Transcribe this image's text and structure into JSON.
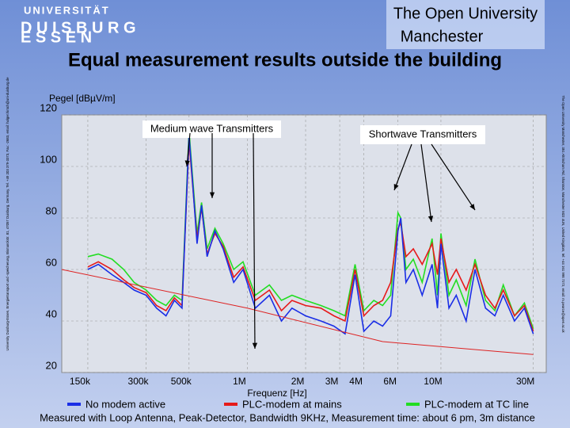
{
  "header": {
    "logo_line1": "UNIVERSITÄT",
    "logo_line2": "D U I S B U R G",
    "logo_line3": "E S S E N",
    "partner_line1": "The Open University",
    "partner_line2": "Manchester",
    "side_left": "University Duisburg-Essen, Energietransport und -speicherung, Bismarckstr. 81, 47057 Duisburg, Germany, Tel. +49 203 379-3373, Fax: -2683, email: holger.hirsch@uni-duisburg.de",
    "side_right": "The Open University Manchester, 351 Altrincham Rd, Sharston, Manchester M22 4UN, United Kingdom, tel: +44 161 998 7272, email: m.pearce@open.ac.uk"
  },
  "chart_data": {
    "type": "line",
    "title": "Equal measurement results outside the building",
    "y_label": "Pegel [dBµV/m]",
    "x_label": "Frequenz [Hz]",
    "footer": "Measured with Loop Antenna, Peak-Detector, Bandwidth 9KHz, Measurement time: about 6 pm, 3m distance",
    "annotations": [
      "Medium wave Transmitters",
      "Shortwave Transmitters"
    ],
    "log_x": true,
    "grid": true,
    "xlim": [
      110000,
      35000000
    ],
    "ylim": [
      20,
      120
    ],
    "xticks": [
      {
        "value": 150000,
        "label": "150k"
      },
      {
        "value": 300000,
        "label": "300k"
      },
      {
        "value": 500000,
        "label": "500k"
      },
      {
        "value": 1000000,
        "label": "1M"
      },
      {
        "value": 2000000,
        "label": "2M"
      },
      {
        "value": 3000000,
        "label": "3M"
      },
      {
        "value": 4000000,
        "label": "4M"
      },
      {
        "value": 6000000,
        "label": "6M"
      },
      {
        "value": 10000000,
        "label": "10M"
      },
      {
        "value": 30000000,
        "label": "30M"
      }
    ],
    "yticks": [
      20,
      40,
      60,
      80,
      100,
      120
    ],
    "x": [
      150000,
      170000,
      200000,
      230000,
      260000,
      300000,
      340000,
      380000,
      420000,
      460000,
      500000,
      520000,
      550000,
      580000,
      620000,
      680000,
      750000,
      850000,
      950000,
      1100000,
      1300000,
      1500000,
      1700000,
      2000000,
      2400000,
      2800000,
      3200000,
      3600000,
      4000000,
      4500000,
      5000000,
      5500000,
      6000000,
      6200000,
      6600000,
      7200000,
      8000000,
      9000000,
      9600000,
      10000000,
      11000000,
      12000000,
      13500000,
      15000000,
      17000000,
      19000000,
      21000000,
      24000000,
      27000000,
      30000000
    ],
    "series": [
      {
        "name": "No modem active",
        "color": "#1a2ee6",
        "values": [
          60,
          62,
          58,
          55,
          52,
          50,
          45,
          42,
          48,
          45,
          112,
          95,
          70,
          85,
          65,
          75,
          68,
          55,
          60,
          45,
          50,
          40,
          45,
          42,
          40,
          38,
          35,
          58,
          36,
          40,
          38,
          42,
          75,
          80,
          55,
          60,
          50,
          62,
          45,
          70,
          45,
          50,
          40,
          60,
          45,
          42,
          50,
          40,
          45,
          35
        ]
      },
      {
        "name": "PLC-modem at mains",
        "color": "#e61a1a",
        "values": [
          61,
          63,
          60,
          56,
          53,
          51,
          46,
          44,
          49,
          46,
          110,
          94,
          72,
          84,
          66,
          74,
          69,
          57,
          61,
          48,
          52,
          44,
          48,
          46,
          45,
          42,
          40,
          60,
          42,
          46,
          48,
          55,
          76,
          78,
          65,
          68,
          62,
          70,
          58,
          72,
          55,
          60,
          52,
          62,
          50,
          45,
          52,
          42,
          46,
          36
        ]
      },
      {
        "name": "PLC-modem at TC line",
        "color": "#22dd22",
        "values": [
          65,
          66,
          64,
          60,
          55,
          52,
          48,
          46,
          50,
          48,
          114,
          97,
          74,
          86,
          68,
          76,
          70,
          60,
          63,
          50,
          54,
          48,
          50,
          48,
          46,
          44,
          42,
          62,
          44,
          48,
          46,
          50,
          82,
          80,
          60,
          64,
          55,
          72,
          50,
          74,
          50,
          56,
          46,
          64,
          48,
          44,
          54,
          42,
          47,
          37
        ]
      }
    ],
    "reference_line": {
      "color": "#dd2222",
      "x": [
        110000,
        1000000,
        5000000,
        30000000
      ],
      "values": [
        60,
        45,
        32,
        27
      ]
    }
  }
}
